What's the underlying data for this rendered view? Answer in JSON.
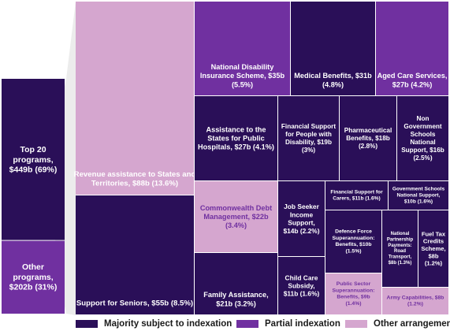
{
  "colors": {
    "majority": "#2a0f58",
    "partial": "#7030a0",
    "other": "#d5a6cf",
    "connector": "#ececec",
    "text_light": "#ffffff",
    "text_other": "#7030a0"
  },
  "chart_data": {
    "type": "treemap",
    "units": "$b",
    "summary": [
      {
        "label": [
          "Top 20",
          "programs,",
          "$449b (69%)"
        ],
        "value": 449,
        "share_pct": 69
      },
      {
        "label": [
          "Other",
          "programs,",
          "$202b (31%)"
        ],
        "value": 202,
        "share_pct": 31
      }
    ],
    "legend": [
      {
        "key": "majority",
        "label": "Majority subject to indexation"
      },
      {
        "key": "partial",
        "label": "Partial indexation"
      },
      {
        "key": "other",
        "label": "Other arrangement"
      }
    ],
    "programs": [
      {
        "name": "Revenue assistance to States and Territories",
        "value": 88,
        "share_pct": 13.6,
        "category": "other",
        "label": [
          "Revenue assistance to States and",
          "Territories, $88b (13.6%)"
        ]
      },
      {
        "name": "Support for Seniors",
        "value": 55,
        "share_pct": 8.5,
        "category": "majority",
        "label": [
          "Support for Seniors, $55b (8.5%)"
        ]
      },
      {
        "name": "National Disability Insurance Scheme",
        "value": 35,
        "share_pct": 5.5,
        "category": "partial",
        "label": [
          "National Disability",
          "Insurance Scheme, $35b",
          "(5.5%)"
        ]
      },
      {
        "name": "Medical Benefits",
        "value": 31,
        "share_pct": 4.8,
        "category": "majority",
        "label": [
          "Medical Benefits, $31b",
          "(4.8%)"
        ]
      },
      {
        "name": "Aged Care Services",
        "value": 27,
        "share_pct": 4.2,
        "category": "partial",
        "label": [
          "Aged Care Services,",
          "$27b (4.2%)"
        ]
      },
      {
        "name": "Assistance to the States for Public Hospitals",
        "value": 27,
        "share_pct": 4.1,
        "category": "majority",
        "label": [
          "Assistance to the",
          "States for Public",
          "Hospitals, $27b (4.1%)"
        ]
      },
      {
        "name": "Financial Support for People with Disability",
        "value": 19,
        "share_pct": 3,
        "category": "majority",
        "label": [
          "Financial Support",
          "for People with",
          "Disability, $19b",
          "(3%)"
        ]
      },
      {
        "name": "Pharmaceutical Benefits",
        "value": 18,
        "share_pct": 2.8,
        "category": "majority",
        "label": [
          "Pharmaceutical",
          "Benefits, $18b",
          "(2.8%)"
        ]
      },
      {
        "name": "Non Government Schools National Support",
        "value": 16,
        "share_pct": 2.5,
        "category": "majority",
        "label": [
          "Non",
          "Government",
          "Schools",
          "National",
          "Support, $16b",
          "(2.5%)"
        ]
      },
      {
        "name": "Commonwealth Debt Management",
        "value": 22,
        "share_pct": 3.4,
        "category": "other",
        "label": [
          "Commonwealth Debt",
          "Management, $22b",
          "(3.4%)"
        ]
      },
      {
        "name": "Family Assistance",
        "value": 21,
        "share_pct": 3.2,
        "category": "majority",
        "label": [
          "Family Assistance,",
          "$21b (3.2%)"
        ]
      },
      {
        "name": "Job Seeker Income Support",
        "value": 14,
        "share_pct": 2.2,
        "category": "majority",
        "label": [
          "Job Seeker",
          "Income",
          "Support,",
          "$14b (2.2%)"
        ]
      },
      {
        "name": "Child Care Subsidy",
        "value": 11,
        "share_pct": 1.6,
        "category": "majority",
        "label": [
          "Child Care",
          "Subsidy,",
          "$11b (1.6%)"
        ]
      },
      {
        "name": "Financial Support for Carers",
        "value": 11,
        "share_pct": 1.6,
        "category": "majority",
        "label": [
          "Financial Support for",
          "Carers, $11b (1.6%)"
        ]
      },
      {
        "name": "Government Schools National Support",
        "value": 10,
        "share_pct": 1.6,
        "category": "majority",
        "label": [
          "Government Schools",
          "National Support,",
          "$10b (1.6%)"
        ]
      },
      {
        "name": "Defence Force Superannuation: Benefits",
        "value": 10,
        "share_pct": 1.5,
        "category": "majority",
        "label": [
          "Defence Force",
          "Superannuation:",
          "Benefits, $10b",
          "(1.5%)"
        ]
      },
      {
        "name": "National Partnership Payments: Road Transport",
        "value": 8,
        "share_pct": 1.3,
        "category": "majority",
        "label": [
          "National",
          "Partnership",
          "Payments:",
          "Road",
          "Transport,",
          "$8b (1.3%)"
        ]
      },
      {
        "name": "Fuel Tax Credits Scheme",
        "value": 8,
        "share_pct": 1.2,
        "category": "majority",
        "label": [
          "Fuel Tax",
          "Credits",
          "Scheme,",
          "$8b",
          "(1.2%)"
        ]
      },
      {
        "name": "Public Sector Superannuation: Benefits",
        "value": 9,
        "share_pct": 1.4,
        "category": "other",
        "label": [
          "Public Sector",
          "Superannuation:",
          "Benefits, $9b",
          "(1.4%)"
        ]
      },
      {
        "name": "Army Capabilities",
        "value": 8,
        "share_pct": 1.2,
        "category": "other",
        "label": [
          "Army Capabilities, $8b",
          "(1.2%)"
        ]
      }
    ]
  }
}
